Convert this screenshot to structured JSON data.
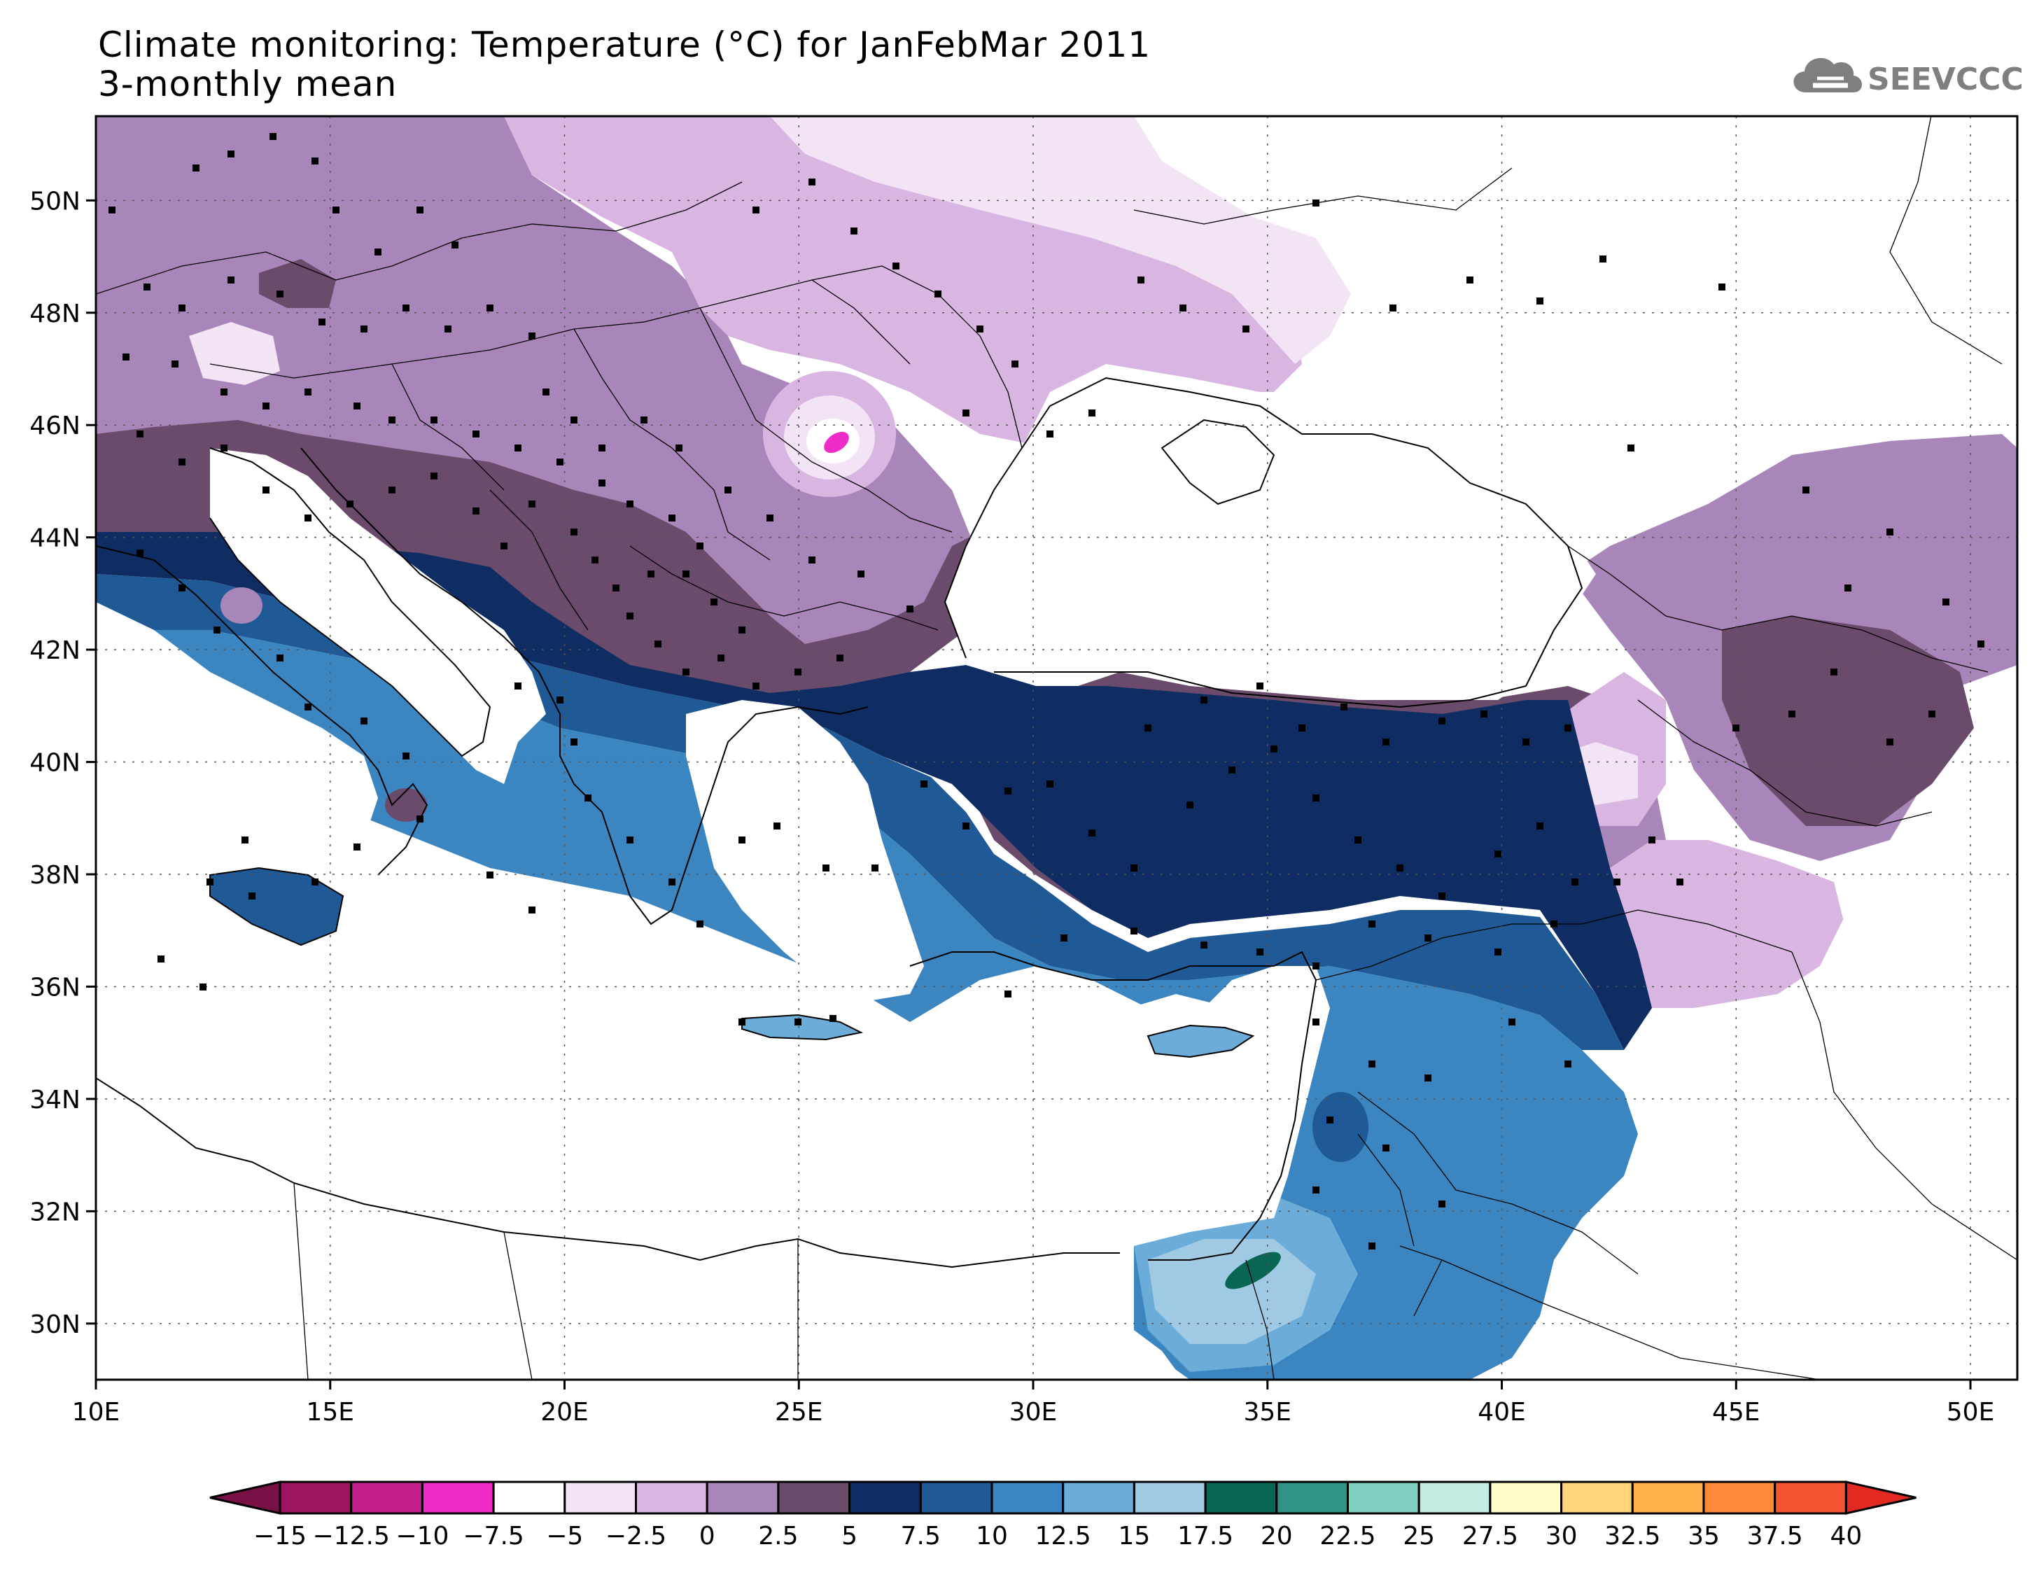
{
  "title": "Climate monitoring: Temperature (°C) for JanFebMar 2011",
  "subtitle": "3-monthly mean",
  "logo_text": "SEEVCCC",
  "lon_ticks": [
    "10E",
    "15E",
    "20E",
    "25E",
    "30E",
    "35E",
    "40E",
    "45E",
    "50E"
  ],
  "lat_ticks": [
    "50N",
    "48N",
    "46N",
    "44N",
    "42N",
    "40N",
    "38N",
    "36N",
    "34N",
    "32N",
    "30N"
  ],
  "colorbar": {
    "labels": [
      "-15",
      "-12.5",
      "-10",
      "-7.5",
      "-5",
      "-2.5",
      "0",
      "2.5",
      "5",
      "7.5",
      "10",
      "12.5",
      "15",
      "17.5",
      "20",
      "22.5",
      "25",
      "27.5",
      "30",
      "32.5",
      "35",
      "37.5",
      "40"
    ],
    "colors": [
      "#9c1560",
      "#c41f8c",
      "#f02cc8",
      "#ffffff",
      "#f2e4f4",
      "#d9b5e2",
      "#a986b9",
      "#6b4b6b",
      "#0f2d62",
      "#1f5a96",
      "#3b86c0",
      "#6cacd8",
      "#a0cae4",
      "#0a6654",
      "#2e9586",
      "#7fd0c0",
      "#c6ebe2",
      "#fffdc8",
      "#ffd77a",
      "#ffb04c",
      "#ff8a3a",
      "#f55532"
    ],
    "under_color": "#7a1146",
    "over_color": "#e22a22"
  },
  "stations_note": ""
}
